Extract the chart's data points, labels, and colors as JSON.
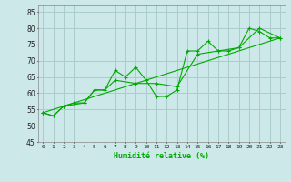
{
  "xlabel": "Humidité relative (%)",
  "bg_color": "#cce8e8",
  "grid_color": "#aacccc",
  "line_color": "#00aa00",
  "xlim": [
    -0.5,
    23.5
  ],
  "ylim": [
    45,
    87
  ],
  "yticks": [
    45,
    50,
    55,
    60,
    65,
    70,
    75,
    80,
    85
  ],
  "xticks": [
    0,
    1,
    2,
    3,
    4,
    5,
    6,
    7,
    8,
    9,
    10,
    11,
    12,
    13,
    14,
    15,
    16,
    17,
    18,
    19,
    20,
    21,
    22,
    23
  ],
  "line1_x": [
    0,
    1,
    2,
    3,
    4,
    5,
    6,
    7,
    8,
    9,
    10,
    11,
    12,
    13,
    14,
    15,
    16,
    17,
    18,
    19,
    20,
    21,
    22,
    23
  ],
  "line1_y": [
    54,
    53,
    56,
    57,
    57,
    61,
    61,
    67,
    65,
    68,
    64,
    59,
    59,
    61,
    73,
    73,
    76,
    73,
    73,
    74,
    80,
    79,
    77,
    77
  ],
  "line2_x": [
    0,
    1,
    2,
    4,
    5,
    6,
    7,
    9,
    11,
    13,
    15,
    17,
    19,
    21,
    23
  ],
  "line2_y": [
    54,
    53,
    56,
    57,
    61,
    61,
    64,
    63,
    63,
    62,
    72,
    73,
    74,
    80,
    77
  ],
  "line3_x": [
    0,
    23
  ],
  "line3_y": [
    54,
    77
  ]
}
